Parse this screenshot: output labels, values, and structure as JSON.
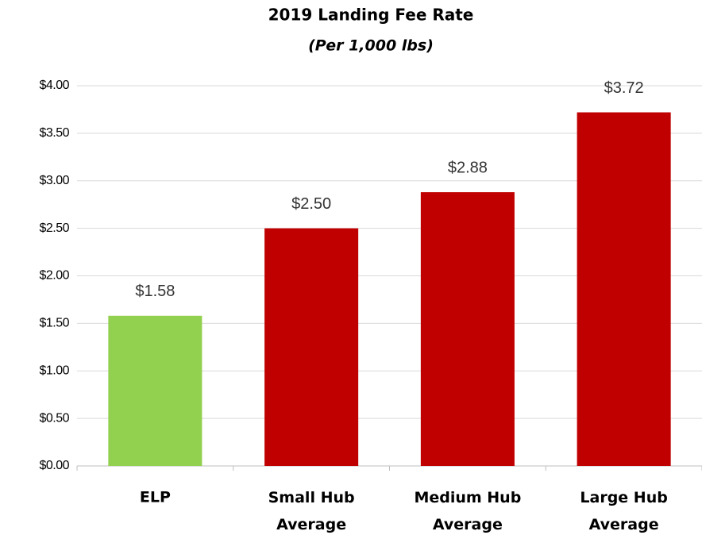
{
  "chart_data": {
    "type": "bar",
    "title": "2019 Landing Fee Rate",
    "subtitle": "(Per 1,000 lbs)",
    "categories": [
      "ELP",
      "Small Hub Average",
      "Medium Hub Average",
      "Large Hub Average"
    ],
    "values": [
      1.58,
      2.5,
      2.88,
      3.72
    ],
    "value_labels": [
      "$1.58",
      "$2.50",
      "$2.88",
      "$3.72"
    ],
    "colors": [
      "#92d050",
      "#c00000",
      "#c00000",
      "#c00000"
    ],
    "ylim": [
      0,
      4
    ],
    "yticks": [
      {
        "value": 0,
        "label": "$0.00"
      },
      {
        "value": 0.5,
        "label": "$0.50"
      },
      {
        "value": 1,
        "label": "$1.00"
      },
      {
        "value": 1.5,
        "label": "$1.50"
      },
      {
        "value": 2,
        "label": "$2.00"
      },
      {
        "value": 2.5,
        "label": "$2.50"
      },
      {
        "value": 3,
        "label": "$3.00"
      },
      {
        "value": 3.5,
        "label": "$3.50"
      },
      {
        "value": 4,
        "label": "$4.00"
      }
    ],
    "grid": true
  }
}
